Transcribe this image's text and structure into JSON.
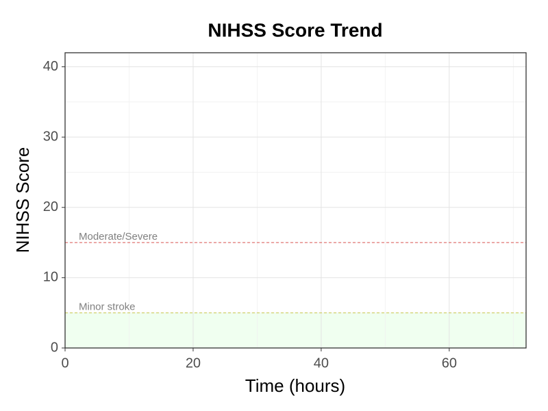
{
  "chart_data": {
    "type": "line",
    "title": "NIHSS Score Trend",
    "x_label": "Time (hours)",
    "y_label": "NIHSS Score",
    "series": [],
    "xlim": [
      0,
      72
    ],
    "ylim": [
      0,
      42
    ],
    "xticks": [
      0,
      20,
      40,
      60
    ],
    "yticks": [
      0,
      10,
      20,
      30,
      40
    ],
    "minor_xticks": [
      10,
      30,
      50,
      70
    ],
    "minor_yticks": [
      5,
      15,
      25,
      35
    ],
    "grid": true,
    "reference_lines": [
      {
        "value": 15,
        "label": "Moderate/Severe",
        "color": "#d9534f"
      },
      {
        "value": 5,
        "label": "Minor stroke",
        "color": "#c8c84a"
      }
    ],
    "shaded_regions": [
      {
        "from": 0,
        "to": 5,
        "color": "#f0fff0"
      }
    ]
  }
}
